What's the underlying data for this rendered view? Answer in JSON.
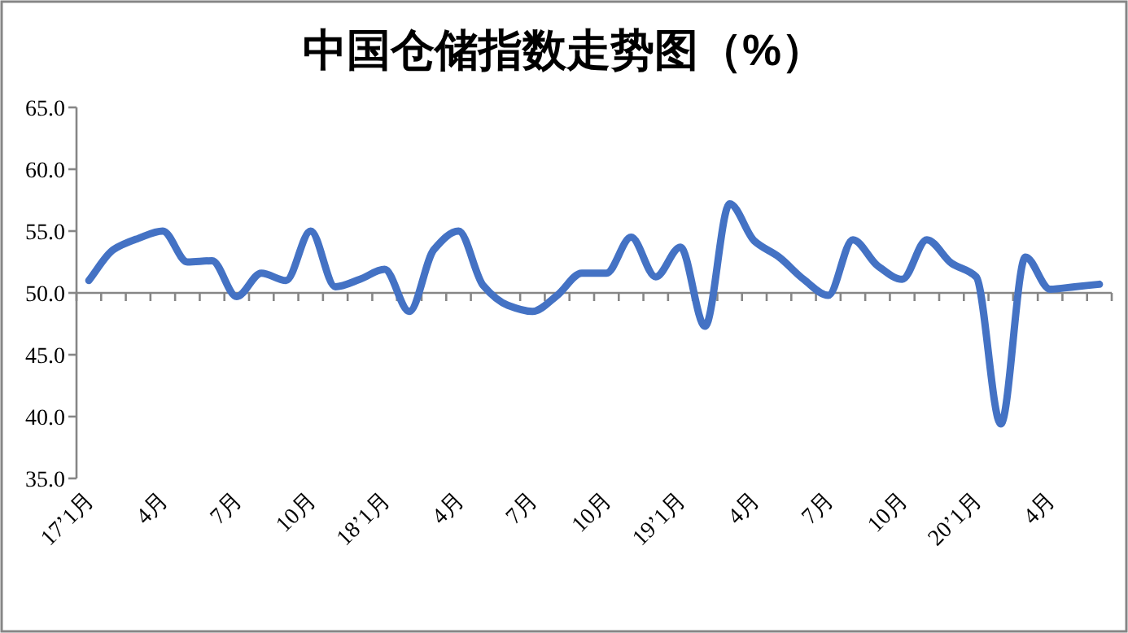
{
  "chart_data": {
    "type": "line",
    "title": "中国仓储指数走势图（%）",
    "categories": [
      "17’1月",
      null,
      null,
      "4月",
      null,
      null,
      "7月",
      null,
      null,
      "10月",
      null,
      null,
      "18’1月",
      null,
      null,
      "4月",
      null,
      null,
      "7月",
      null,
      null,
      "10月",
      null,
      null,
      "19’1月",
      null,
      null,
      "4月",
      null,
      null,
      "7月",
      null,
      null,
      "10月",
      null,
      null,
      "20’1月",
      null,
      null,
      "4月",
      null,
      null
    ],
    "series": [
      {
        "color": "#4472c4",
        "values": [
          51.0,
          53.5,
          54.4,
          55.0,
          52.5,
          52.6,
          49.7,
          51.6,
          51.0,
          55.0,
          50.5,
          51.1,
          51.9,
          48.5,
          53.5,
          55.0,
          50.6,
          49.0,
          48.5,
          49.8,
          51.6,
          51.6,
          54.5,
          51.3,
          53.7,
          47.3,
          57.2,
          54.2,
          52.9,
          51.1,
          49.8,
          54.3,
          52.2,
          51.1,
          54.3,
          52.4,
          51.3,
          39.4,
          52.9,
          50.3,
          50.5,
          50.7
        ]
      }
    ],
    "ylim": [
      35,
      65
    ],
    "yticks": [
      {
        "value": 35,
        "label": "35.0"
      },
      {
        "value": 40,
        "label": "40.0"
      },
      {
        "value": 45,
        "label": "45.0"
      },
      {
        "value": 50,
        "label": "50.0"
      },
      {
        "value": 55,
        "label": "55.0"
      },
      {
        "value": 60,
        "label": "60.0"
      },
      {
        "value": 65,
        "label": "65.0"
      }
    ],
    "ref_lines": [
      {
        "axis": "y",
        "value": 50,
        "color": "#868686"
      }
    ],
    "grid": false,
    "marker": "none",
    "line_style": "solid"
  }
}
